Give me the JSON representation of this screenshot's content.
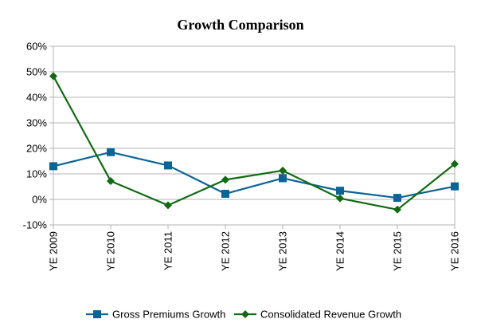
{
  "chart_data": {
    "type": "line",
    "title": "Growth Comparison",
    "xlabel": "",
    "ylabel": "",
    "categories": [
      "YE 2009",
      "YE 2010",
      "YE 2011",
      "YE 2012",
      "YE 2013",
      "YE 2014",
      "YE 2015",
      "YE 2016"
    ],
    "ylim": [
      -10,
      60
    ],
    "yticks": [
      -10,
      0,
      10,
      20,
      30,
      40,
      50,
      60
    ],
    "ytick_labels": [
      "-10%",
      "0%",
      "10%",
      "20%",
      "30%",
      "40%",
      "50%",
      "60%"
    ],
    "grid": true,
    "legend_position": "bottom",
    "series": [
      {
        "name": "Gross Premiums Growth",
        "color": "#0b6496",
        "marker": "square",
        "values": [
          13,
          18.5,
          13.3,
          2.2,
          8.3,
          3.4,
          0.6,
          5.1
        ]
      },
      {
        "name": "Consolidated Revenue Growth",
        "color": "#126a12",
        "marker": "diamond",
        "values": [
          48.3,
          7.2,
          -2.3,
          7.7,
          11.3,
          0.4,
          -4,
          13.9
        ]
      }
    ]
  }
}
